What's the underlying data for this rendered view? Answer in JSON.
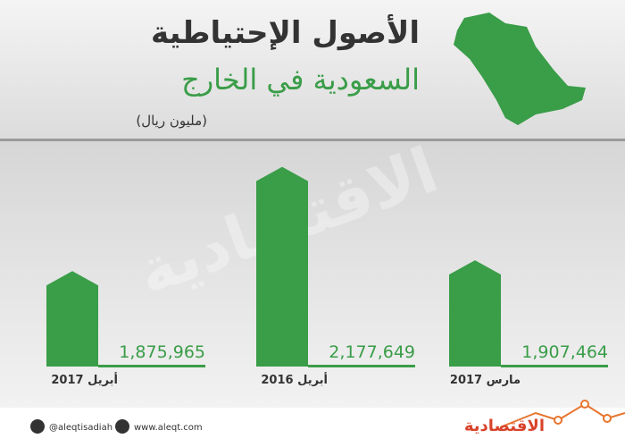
{
  "chart_data": {
    "type": "bar",
    "title": "الأصول الإحتياطية",
    "subtitle": "السعودية في الخارج",
    "unit": "(مليون ريال)",
    "categories": [
      "أبريل 2017",
      "أبريل 2016",
      "مارس 2017"
    ],
    "values": [
      1875965,
      2177649,
      1907464
    ],
    "value_labels": [
      "1,875,965",
      "2,177,649",
      "1,907,464"
    ],
    "color": "#3a9d48",
    "ylim": [
      1600000,
      2200000
    ],
    "watermark": "الاقتصادية"
  },
  "footer": {
    "twitter": "@aleqtisadiah",
    "website": "www.aleqt.com",
    "logo": "الاقتصادية"
  }
}
